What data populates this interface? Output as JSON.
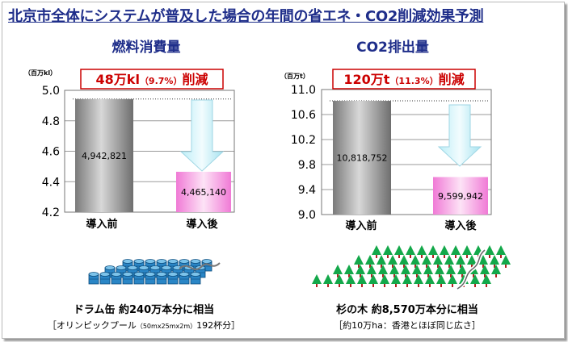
{
  "title": "北京市全体にシステムが普及した場合の年間の省エネ・CO2削減効果予測",
  "colors": {
    "title": "#1f2e8a",
    "reduction": "#cc0000",
    "before_bar": "#8c8c8c",
    "after_bar": "#f07ad6",
    "arrow": "#aee8f3",
    "drum": "#2a86c6",
    "tree": "#13a84a"
  },
  "chart_data": [
    {
      "type": "bar",
      "title": "燃料消費量",
      "unit": "（百万kl）",
      "categories": [
        "導入前",
        "導入後"
      ],
      "values": [
        4.942821,
        4.46514
      ],
      "value_labels": [
        "4,942,821",
        "4,465,140"
      ],
      "ylim": [
        4.2,
        5.0
      ],
      "yticks": [
        "4.2",
        "4.4",
        "4.6",
        "4.8",
        "5.0"
      ],
      "ytick_values": [
        4.2,
        4.4,
        4.6,
        4.8,
        5.0
      ],
      "grid": true,
      "reduction_main": "48万kl",
      "reduction_pct": "（9.7%）",
      "reduction_word": "削減"
    },
    {
      "type": "bar",
      "title": "CO2排出量",
      "unit": "（百万t）",
      "categories": [
        "導入前",
        "導入後"
      ],
      "values": [
        10.818752,
        9.599942
      ],
      "value_labels": [
        "10,818,752",
        "9,599,942"
      ],
      "ylim": [
        9.0,
        11.0
      ],
      "yticks": [
        "9.0",
        "9.4",
        "9.8",
        "10.2",
        "10.6",
        "11.0"
      ],
      "ytick_values": [
        9.0,
        9.4,
        9.8,
        10.2,
        10.6,
        11.0
      ],
      "grid": true,
      "reduction_main": "120万t",
      "reduction_pct": "（11.3%）",
      "reduction_word": "削減"
    }
  ],
  "equivalents": {
    "left_line1": "ドラム缶 約240万本分に相当",
    "left_line2a": "［オリンピックプール",
    "left_line2b": "（50mx25mx2m）",
    "left_line2c": "192杯分］",
    "right_line1": "杉の木 約8,570万本分に相当",
    "right_line2": "［約10万ha：香港とほぼ同じ広さ］"
  }
}
